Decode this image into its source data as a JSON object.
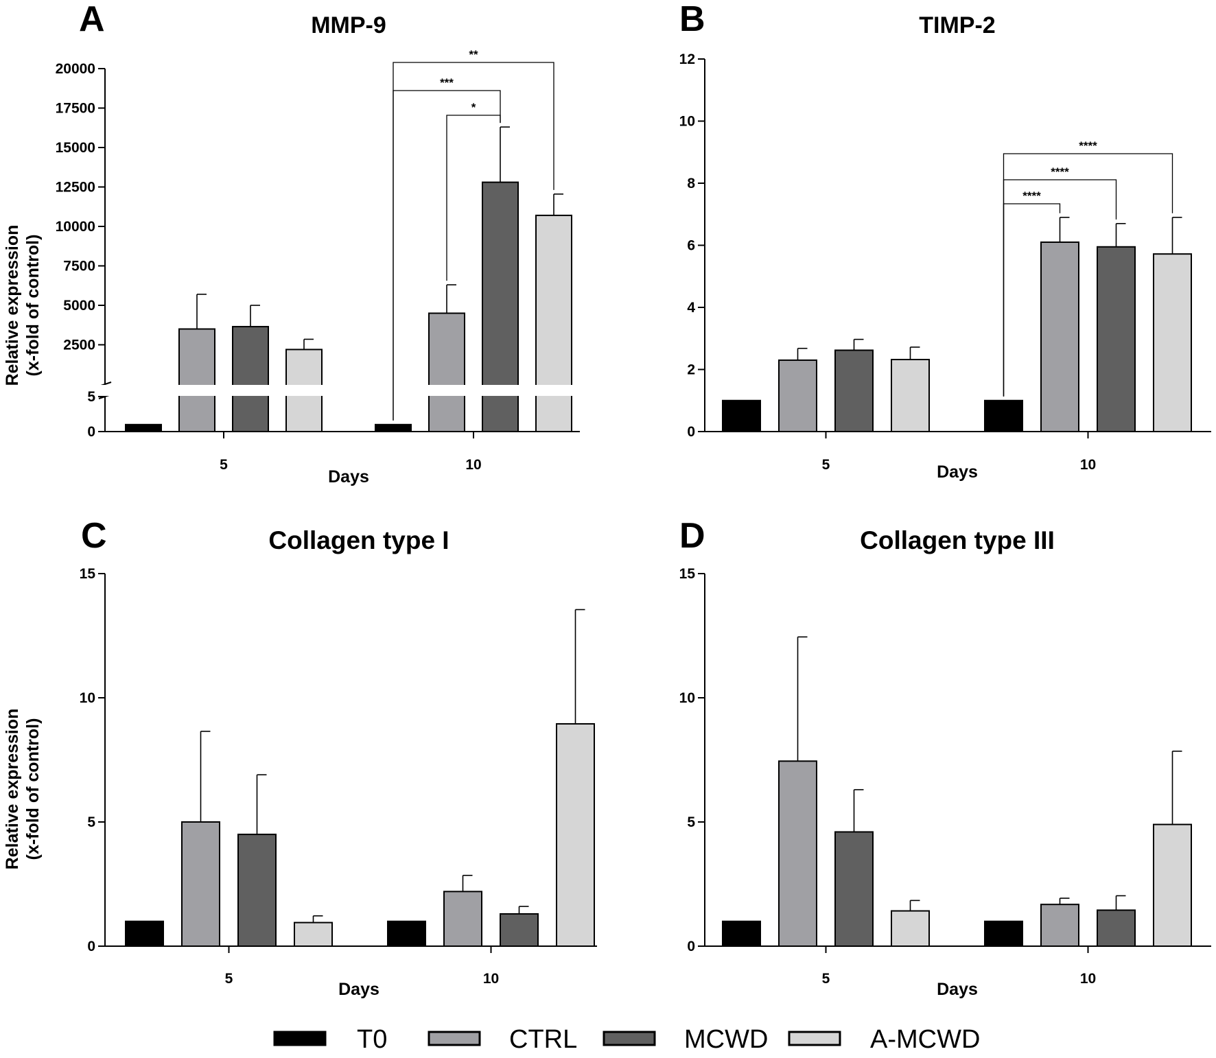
{
  "chart_data": [
    {
      "panel": "A",
      "type": "bar",
      "title": "MMP-9",
      "xlabel": "Days",
      "ylabel": [
        "Relative expression",
        "(x-fold of control)"
      ],
      "categories": [
        "5",
        "10"
      ],
      "y_axis_break": {
        "lower_range": [
          0,
          5
        ],
        "upper_range": [
          0,
          20000
        ]
      },
      "lower_ticks": [
        0,
        5
      ],
      "upper_ticks": [
        2500,
        5000,
        7500,
        10000,
        12500,
        15000,
        17500,
        20000
      ],
      "series": [
        {
          "name": "T0",
          "values": [
            1,
            1
          ],
          "errors": [
            0,
            0
          ]
        },
        {
          "name": "CTRL",
          "values": [
            3500,
            4500
          ],
          "errors": [
            2200,
            1800
          ]
        },
        {
          "name": "MCWD",
          "values": [
            3650,
            12800
          ],
          "errors": [
            1350,
            3500
          ]
        },
        {
          "name": "A-MCWD",
          "values": [
            2200,
            10700
          ],
          "errors": [
            650,
            1350
          ]
        }
      ],
      "significance": [
        {
          "from": "T0",
          "to": "A-MCWD",
          "day": "10",
          "label": "**"
        },
        {
          "from": "T0",
          "to": "MCWD",
          "day": "10",
          "label": "***"
        },
        {
          "from": "CTRL",
          "to": "MCWD",
          "day": "10",
          "label": "*"
        }
      ]
    },
    {
      "panel": "B",
      "type": "bar",
      "title": "TIMP-2",
      "xlabel": "Days",
      "ylabel": [],
      "categories": [
        "5",
        "10"
      ],
      "ylim": [
        0,
        12
      ],
      "ticks": [
        0,
        2,
        4,
        6,
        8,
        10,
        12
      ],
      "series": [
        {
          "name": "T0",
          "values": [
            1,
            1
          ],
          "errors": [
            0,
            0
          ]
        },
        {
          "name": "CTRL",
          "values": [
            2.3,
            6.1
          ],
          "errors": [
            0.38,
            0.8
          ]
        },
        {
          "name": "MCWD",
          "values": [
            2.62,
            5.95
          ],
          "errors": [
            0.35,
            0.75
          ]
        },
        {
          "name": "A-MCWD",
          "values": [
            2.32,
            5.72
          ],
          "errors": [
            0.4,
            1.18
          ]
        }
      ],
      "significance": [
        {
          "from": "T0",
          "to": "A-MCWD",
          "day": "10",
          "label": "****"
        },
        {
          "from": "T0",
          "to": "MCWD",
          "day": "10",
          "label": "****"
        },
        {
          "from": "T0",
          "to": "CTRL",
          "day": "10",
          "label": "****"
        }
      ]
    },
    {
      "panel": "C",
      "type": "bar",
      "title": "Collagen type I",
      "xlabel": "Days",
      "ylabel": [
        "Relative expression",
        "(x-fold of control)"
      ],
      "categories": [
        "5",
        "10"
      ],
      "ylim": [
        0,
        15
      ],
      "ticks": [
        0,
        5,
        10,
        15
      ],
      "series": [
        {
          "name": "T0",
          "values": [
            1,
            1
          ],
          "errors": [
            0,
            0
          ]
        },
        {
          "name": "CTRL",
          "values": [
            5.0,
            2.2
          ],
          "errors": [
            3.65,
            0.65
          ]
        },
        {
          "name": "MCWD",
          "values": [
            4.5,
            1.3
          ],
          "errors": [
            2.4,
            0.3
          ]
        },
        {
          "name": "A-MCWD",
          "values": [
            0.95,
            8.95
          ],
          "errors": [
            0.27,
            4.6
          ]
        }
      ],
      "significance": []
    },
    {
      "panel": "D",
      "type": "bar",
      "title": "Collagen type III",
      "xlabel": "Days",
      "ylabel": [],
      "categories": [
        "5",
        "10"
      ],
      "ylim": [
        0,
        15
      ],
      "ticks": [
        0,
        5,
        10,
        15
      ],
      "series": [
        {
          "name": "T0",
          "values": [
            1,
            1
          ],
          "errors": [
            0,
            0
          ]
        },
        {
          "name": "CTRL",
          "values": [
            7.45,
            1.68
          ],
          "errors": [
            5.0,
            0.25
          ]
        },
        {
          "name": "MCWD",
          "values": [
            4.6,
            1.45
          ],
          "errors": [
            1.7,
            0.58
          ]
        },
        {
          "name": "A-MCWD",
          "values": [
            1.42,
            4.9
          ],
          "errors": [
            0.42,
            2.95
          ]
        }
      ],
      "significance": []
    }
  ],
  "legend": {
    "items": [
      {
        "label": "T0",
        "color": "#000000"
      },
      {
        "label": "CTRL",
        "color": "#a0a0a4"
      },
      {
        "label": "MCWD",
        "color": "#606060"
      },
      {
        "label": "A-MCWD",
        "color": "#d6d6d6"
      }
    ]
  },
  "colors": {
    "T0": "#000000",
    "CTRL": "#a0a0a4",
    "MCWD": "#606060",
    "A-MCWD": "#d6d6d6"
  }
}
